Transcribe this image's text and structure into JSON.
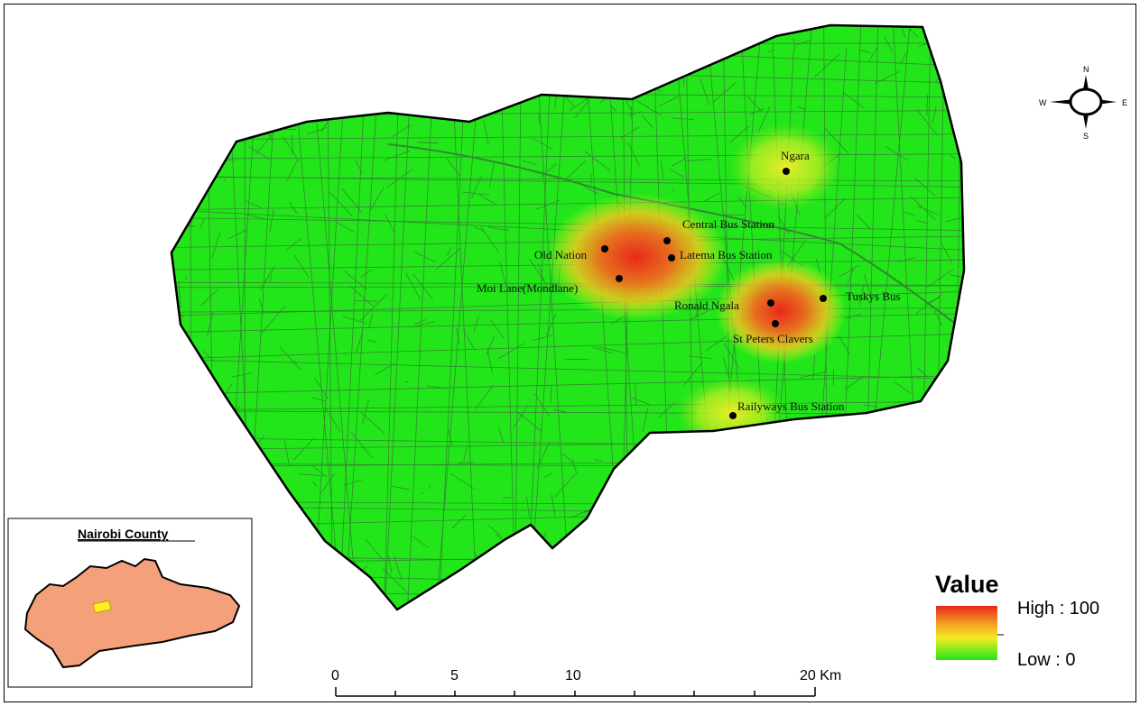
{
  "places": [
    {
      "name": "Ngara"
    },
    {
      "name": "Central Bus Station"
    },
    {
      "name": "Old Nation"
    },
    {
      "name": "Latema Bus Station"
    },
    {
      "name": "Moi Lane(Mondlane)"
    },
    {
      "name": "Ronald Ngala"
    },
    {
      "name": "Tuskys Bus"
    },
    {
      "name": "St Peters Clavers"
    },
    {
      "name": "Railyways Bus Station"
    }
  ],
  "legend": {
    "title": "Value",
    "high_label": "High : 100",
    "low_label": "Low : 0",
    "high_color": "#e8281b",
    "mid_color": "#f5a623",
    "low_color": "#22e61a"
  },
  "scale_bar": {
    "ticks": [
      "0",
      "5",
      "10",
      "20 Km"
    ]
  },
  "compass": {
    "n": "N",
    "s": "S",
    "e": "E",
    "w": "W"
  },
  "inset": {
    "title": "Nairobi County",
    "county_color": "#f4a07a",
    "highlight_color": "#ffee22"
  },
  "colors": {
    "base_fill": "#22e61a",
    "street_lines": "#3a6b38"
  }
}
